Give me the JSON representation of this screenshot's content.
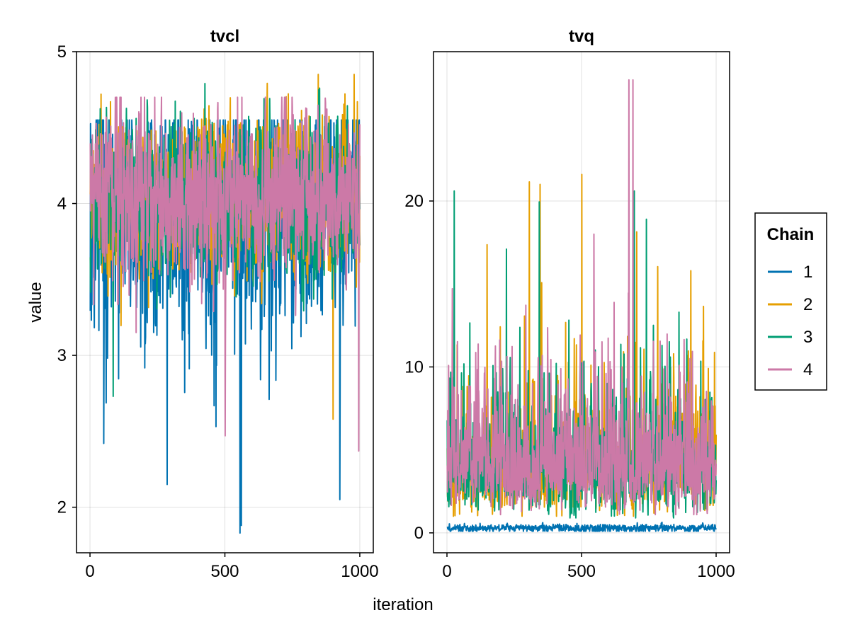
{
  "chart_data": {
    "type": "line",
    "xlabel": "iteration",
    "ylabel": "value",
    "legend": {
      "title": "Chain",
      "placement": "right",
      "entries": [
        {
          "name": "1",
          "color": "#0072b2"
        },
        {
          "name": "2",
          "color": "#e69f00"
        },
        {
          "name": "3",
          "color": "#009e73"
        },
        {
          "name": "4",
          "color": "#cc79a7"
        }
      ]
    },
    "panels": [
      {
        "title": "tvcl",
        "xlim": [
          -50,
          1050
        ],
        "ylim": [
          1.7,
          5.0
        ],
        "xticks": [
          0,
          500,
          1000
        ],
        "yticks": [
          2,
          3,
          4,
          5
        ],
        "grid": true,
        "series_summary": [
          {
            "chain": "1",
            "n": 1000,
            "mean": 3.95,
            "sd": 0.4,
            "min": 1.83,
            "max": 4.55,
            "spikes": [
              [
                50,
                2.42
              ],
              [
                285,
                2.15
              ],
              [
                555,
                1.83
              ],
              [
                560,
                1.88
              ],
              [
                925,
                2.05
              ]
            ]
          },
          {
            "chain": "2",
            "n": 1000,
            "mean": 4.05,
            "sd": 0.25,
            "min": 2.57,
            "max": 4.85,
            "spikes": [
              [
                75,
                4.67
              ],
              [
                845,
                4.85
              ],
              [
                900,
                2.58
              ],
              [
                990,
                4.67
              ]
            ]
          },
          {
            "chain": "3",
            "n": 1000,
            "mean": 4.05,
            "sd": 0.25,
            "min": 2.73,
            "max": 4.79,
            "spikes": [
              [
                85,
                2.73
              ],
              [
                425,
                4.79
              ],
              [
                850,
                4.76
              ]
            ]
          },
          {
            "chain": "4",
            "n": 1000,
            "mean": 4.05,
            "sd": 0.27,
            "min": 2.36,
            "max": 4.7,
            "spikes": [
              [
                170,
                3.15
              ],
              [
                500,
                2.47
              ],
              [
                725,
                4.7
              ],
              [
                995,
                2.37
              ]
            ]
          }
        ]
      },
      {
        "title": "tvq",
        "xlim": [
          -50,
          1050
        ],
        "ylim": [
          -1.2,
          29.0
        ],
        "xticks": [
          0,
          500,
          1000
        ],
        "yticks": [
          0,
          10,
          20
        ],
        "grid": true,
        "series_summary": [
          {
            "chain": "1",
            "n": 1000,
            "mean": 0.3,
            "sd": 0.1,
            "min": 0.1,
            "max": 0.8
          },
          {
            "chain": "2",
            "n": 1000,
            "mean": 4.5,
            "sd": 2.0,
            "min": 1.0,
            "max": 21.6,
            "spikes": [
              [
                345,
                21.0
              ],
              [
                500,
                21.6
              ],
              [
                905,
                15.8
              ]
            ]
          },
          {
            "chain": "3",
            "n": 1000,
            "mean": 4.5,
            "sd": 2.0,
            "min": 0.9,
            "max": 20.6,
            "spikes": [
              [
                220,
                17.1
              ],
              [
                695,
                20.6
              ],
              [
                740,
                18.9
              ]
            ]
          },
          {
            "chain": "4",
            "n": 1000,
            "mean": 4.5,
            "sd": 2.0,
            "min": 1.1,
            "max": 27.3,
            "spikes": [
              [
                545,
                18.0
              ],
              [
                690,
                27.3
              ]
            ]
          }
        ]
      }
    ]
  }
}
